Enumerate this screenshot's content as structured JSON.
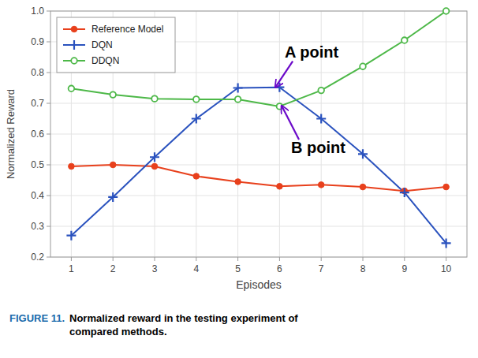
{
  "chart_data": {
    "type": "line",
    "x_label": "Episodes",
    "y_label": "Normalized Reward",
    "x": [
      1,
      2,
      3,
      4,
      5,
      6,
      7,
      8,
      9,
      10
    ],
    "series": [
      {
        "name": "Reference Model",
        "color": "#e8401c",
        "marker": "circle",
        "values": [
          0.495,
          0.5,
          0.495,
          0.463,
          0.445,
          0.43,
          0.435,
          0.428,
          0.415,
          0.428
        ]
      },
      {
        "name": "DQN",
        "color": "#2a52be",
        "marker": "plus",
        "values": [
          0.27,
          0.395,
          0.525,
          0.65,
          0.75,
          0.752,
          0.65,
          0.535,
          0.41,
          0.245
        ]
      },
      {
        "name": "DDQN",
        "color": "#4db848",
        "marker": "open-circle",
        "values": [
          0.748,
          0.728,
          0.715,
          0.713,
          0.713,
          0.69,
          0.742,
          0.82,
          0.905,
          1.0
        ]
      }
    ],
    "xlim": [
      0.5,
      10.5
    ],
    "xticks": [
      1,
      2,
      3,
      4,
      5,
      6,
      7,
      8,
      9,
      10
    ],
    "ylim": [
      0.2,
      1.0
    ],
    "yticks": [
      0.2,
      0.3,
      0.4,
      0.5,
      0.6,
      0.7,
      0.8,
      0.9,
      {
        "value": 1.0,
        "label": "1.0"
      }
    ],
    "grid": true,
    "legend": "upper left",
    "annotations": [
      {
        "text": "A point",
        "x": 5.9,
        "y": 0.752,
        "color": "#6b0ac9"
      },
      {
        "text": "B point",
        "x": 6.05,
        "y": 0.692,
        "color": "#6b0ac9"
      }
    ],
    "caption": {
      "label": "FIGURE 11.",
      "color": "#1a6aab",
      "text": " Normalized reward in the testing experiment of\ncompared methods."
    }
  }
}
